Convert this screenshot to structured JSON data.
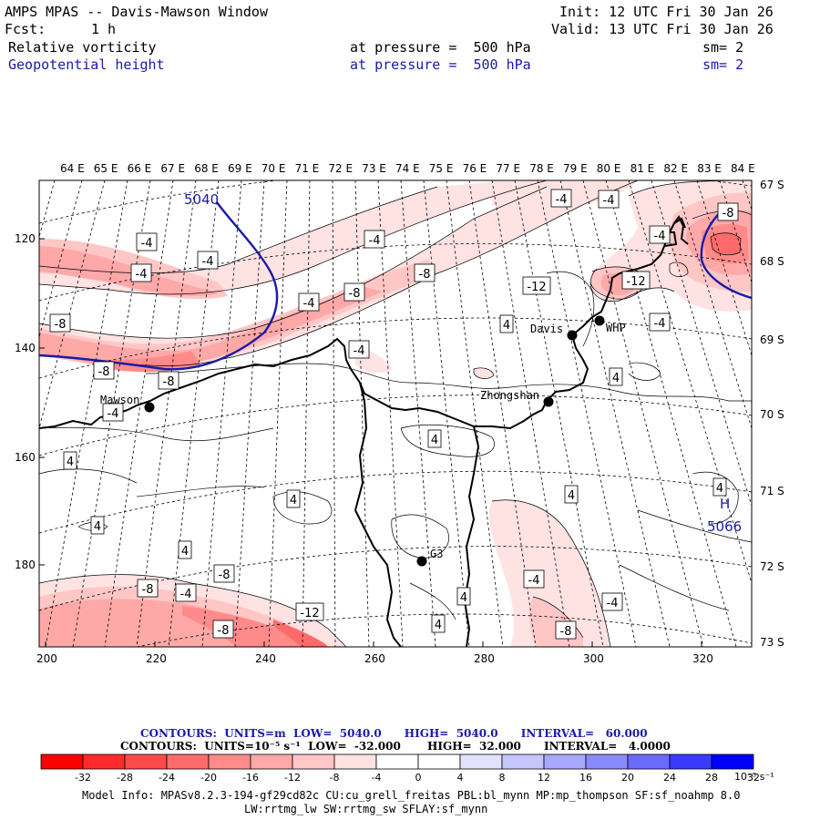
{
  "header": {
    "title": "AMPS MPAS -- Davis-Mawson Window",
    "init": "Init: 12 UTC Fri 30 Jan 26",
    "fcst_label": "Fcst:",
    "fcst_value": "1 h",
    "valid": "Valid: 13 UTC Fri 30 Jan 26",
    "field1_name": "Relative vorticity",
    "field1_level": "at pressure =  500 hPa",
    "field1_sm": "sm= 2",
    "field2_name": "Geopotential height",
    "field2_level": "at pressure =  500 hPa",
    "field2_sm": "sm= 2"
  },
  "map": {
    "top_lon_labels": [
      "64 E",
      "65 E",
      "66 E",
      "67 E",
      "68 E",
      "69 E",
      "70 E",
      "71 E",
      "72 E",
      "73 E",
      "74 E",
      "75 E",
      "76 E",
      "77 E",
      "78 E",
      "79 E",
      "80 E",
      "81 E",
      "82 E",
      "83 E",
      "84 E"
    ],
    "right_lat_labels": [
      "67 S",
      "68 S",
      "69 S",
      "70 S",
      "71 S",
      "72 S",
      "73 S"
    ],
    "left_y_labels": [
      "120",
      "140",
      "160",
      "180"
    ],
    "bottom_x_labels": [
      "200",
      "220",
      "240",
      "260",
      "280",
      "300",
      "320"
    ],
    "stations": [
      {
        "name": "Mawson"
      },
      {
        "name": "Davis"
      },
      {
        "name": "WHP"
      },
      {
        "name": "Zhongshan"
      },
      {
        "name": "G3"
      }
    ],
    "height_labels": {
      "contour": "5040",
      "high_marker": "H",
      "high_value": "5066"
    },
    "vort_labels": [
      "-4",
      "-4",
      "-4",
      "-4",
      "-4",
      "-4",
      "-4",
      "-4",
      "-4",
      "-4",
      "-4",
      "-4",
      "-4",
      "-4",
      "-8",
      "-8",
      "-8",
      "-8",
      "-8",
      "-8",
      "-8",
      "-8",
      "-8",
      "-8",
      "-12",
      "-12",
      "-12",
      "4",
      "4",
      "4",
      "4",
      "4",
      "4",
      "4",
      "4",
      "4",
      "4",
      "4",
      "8"
    ]
  },
  "legend": {
    "line1": "CONTOURS:  UNITS=m  LOW=  5040.0      HIGH=  5040.0      INTERVAL=   60.000",
    "line2": "CONTOURS:  UNITS=10⁻⁵ s⁻¹  LOW=  -32.000       HIGH=  32.000      INTERVAL=   4.0000",
    "colorbar_ticks": [
      "-32",
      "-28",
      "-24",
      "-20",
      "-16",
      "-12",
      "-8",
      "-4",
      "0",
      "4",
      "8",
      "12",
      "16",
      "20",
      "24",
      "28",
      "32"
    ],
    "colorbar_units": "10⁻⁵ s⁻¹",
    "colors": [
      "#ff0000",
      "#ff2a2a",
      "#ff4a4a",
      "#ff6a6a",
      "#ff8a8a",
      "#ffa8a8",
      "#ffc6c6",
      "#ffe2e2",
      "#ffffff",
      "#ffffff",
      "#e2e2ff",
      "#c6c6ff",
      "#a8a8ff",
      "#8a8aff",
      "#6a6aff",
      "#3a3aff",
      "#0000ff"
    ]
  },
  "model_info": {
    "line1": "Model Info: MPASv8.2.3-194-gf29cd82c CU:cu_grell_freitas PBL:bl_mynn MP:mp_thompson SF:sf_noahmp 8.0",
    "line2": "LW:rrtmg_lw SW:rrtmg_sw SFLAY:sf_mynn"
  }
}
